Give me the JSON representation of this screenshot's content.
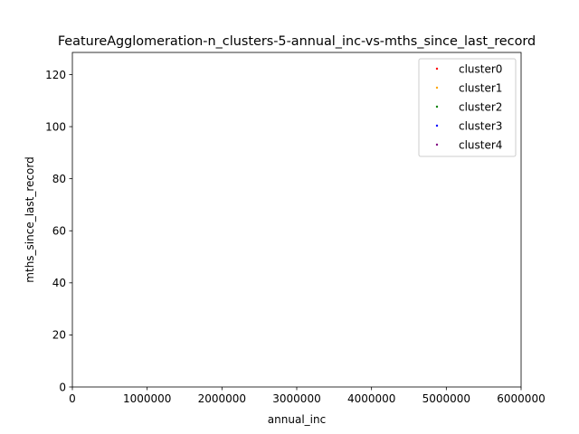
{
  "chart_data": {
    "type": "scatter",
    "title": "FeatureAgglomeration-n_clusters-5-annual_inc-vs-mths_since_last_record",
    "xlabel": "annual_inc",
    "ylabel": "mths_since_last_record",
    "xlim": [
      0,
      6000000
    ],
    "ylim": [
      0,
      128.5
    ],
    "x_ticks": [
      0,
      1000000,
      2000000,
      3000000,
      4000000,
      5000000,
      6000000
    ],
    "x_tick_labels": [
      "0",
      "1000000",
      "2000000",
      "3000000",
      "4000000",
      "5000000",
      "6000000"
    ],
    "y_ticks": [
      0,
      20,
      40,
      60,
      80,
      100,
      120
    ],
    "y_tick_labels": [
      "0",
      "20",
      "40",
      "60",
      "80",
      "100",
      "120"
    ],
    "grid": false,
    "legend_position": "top-right",
    "series": [
      {
        "name": "cluster0",
        "color": "#ff0000",
        "points": []
      },
      {
        "name": "cluster1",
        "color": "#ffa500",
        "points": []
      },
      {
        "name": "cluster2",
        "color": "#008000",
        "points": []
      },
      {
        "name": "cluster3",
        "color": "#0000ff",
        "points": []
      },
      {
        "name": "cluster4",
        "color": "#800080",
        "points": []
      }
    ]
  }
}
